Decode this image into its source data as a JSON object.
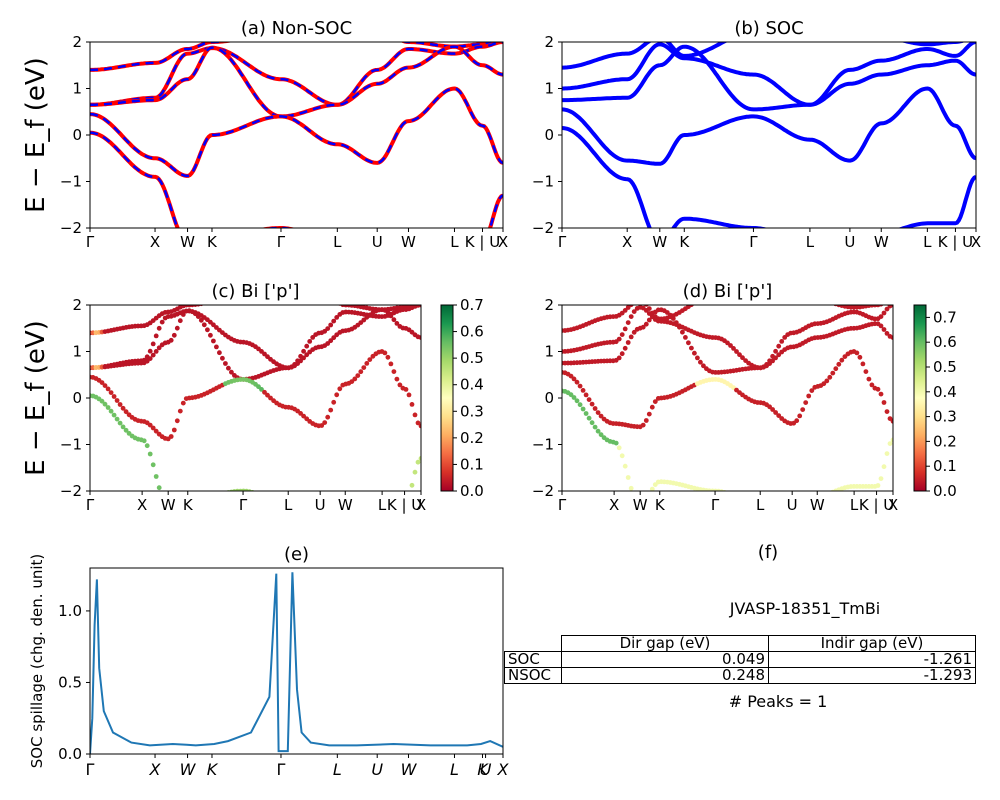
{
  "chart_data": [
    {
      "type": "line",
      "title": "(a) Non-SOC",
      "ylabel": "E − E_f (eV)",
      "ylim": [
        -2,
        2
      ],
      "yticks": [
        "−2",
        "−1",
        "0",
        "1",
        "2"
      ],
      "xticks": [
        "Γ",
        "X",
        "W",
        "K",
        "Γ",
        "L",
        "U",
        "W",
        "L",
        "K | U",
        "X"
      ],
      "kpath_positions": [
        0,
        1.414,
        2.121,
        2.652,
        4.152,
        5.377,
        6.244,
        6.924,
        7.924,
        8.533,
        8.979
      ],
      "series": [
        {
          "color": "#ff0000",
          "style": "solid",
          "bands": [
            [
              1.4,
              1.55,
              1.85,
              2.0,
              2.2,
              2.2,
              2.3,
              2.0,
              1.9,
              1.95,
              2.1
            ],
            [
              0.65,
              0.8,
              1.75,
              1.87,
              1.2,
              0.65,
              1.4,
              1.85,
              1.75,
              1.9,
              2.0
            ],
            [
              0.65,
              0.75,
              1.2,
              1.88,
              0.4,
              0.65,
              1.1,
              1.45,
              1.9,
              1.5,
              1.3
            ],
            [
              0.45,
              -0.5,
              -0.88,
              0.0,
              0.4,
              -0.2,
              -0.6,
              0.3,
              1.0,
              0.2,
              -0.6
            ],
            [
              0.05,
              -0.9,
              -2.3,
              -2.2,
              -2.0,
              -2.3,
              -2.3,
              -2.3,
              -2.1,
              -2.3,
              -1.3
            ]
          ]
        },
        {
          "color": "#0000ff",
          "style": "dashed",
          "bands": "same as solid"
        }
      ]
    },
    {
      "type": "line",
      "title": "(b) SOC",
      "ylim": [
        -2,
        2
      ],
      "yticks": [
        "−2",
        "−1",
        "0",
        "1",
        "2"
      ],
      "xticks": [
        "Γ",
        "X",
        "W",
        "K",
        "Γ",
        "L",
        "U",
        "W",
        "L",
        "K | U",
        "X"
      ],
      "series": [
        {
          "color": "#0000ff",
          "bands": [
            [
              1.45,
              1.75,
              2.1,
              1.7,
              2.2,
              2.2,
              2.3,
              2.1,
              1.95,
              2.0,
              2.1
            ],
            [
              1.0,
              1.2,
              1.95,
              1.65,
              1.3,
              0.65,
              1.4,
              1.6,
              1.85,
              1.7,
              2.0
            ],
            [
              0.75,
              0.8,
              1.5,
              1.9,
              0.55,
              0.65,
              1.1,
              1.3,
              1.5,
              1.6,
              1.3
            ],
            [
              0.55,
              -0.55,
              -0.62,
              0.0,
              0.4,
              -0.1,
              -0.55,
              0.25,
              1.0,
              0.2,
              -0.5
            ],
            [
              0.15,
              -0.95,
              -2.3,
              -1.8,
              -2.0,
              -2.3,
              -2.3,
              -2.1,
              -1.9,
              -1.9,
              -0.9
            ]
          ]
        }
      ]
    },
    {
      "type": "scatter",
      "title": "(c)  Bi ['p']",
      "ylabel": "E − E_f (eV)",
      "ylim": [
        -2,
        2
      ],
      "colormap": "RdYlGn",
      "colorbar_range": [
        0.0,
        0.7
      ],
      "colorbar_ticks": [
        "0.0",
        "0.1",
        "0.2",
        "0.3",
        "0.4",
        "0.5",
        "0.6",
        "0.7"
      ],
      "xticks": [
        "Γ",
        "X",
        "W",
        "K",
        "Γ",
        "L",
        "U",
        "W",
        "L",
        "K | U",
        "X"
      ]
    },
    {
      "type": "scatter",
      "title": "(d) Bi ['p']",
      "ylim": [
        -2,
        2
      ],
      "colormap": "RdYlGn",
      "colorbar_range": [
        0.0,
        0.75
      ],
      "colorbar_ticks": [
        "0.0",
        "0.1",
        "0.2",
        "0.3",
        "0.4",
        "0.5",
        "0.6",
        "0.7"
      ],
      "xticks": [
        "Γ",
        "X",
        "W",
        "K",
        "Γ",
        "L",
        "U",
        "W",
        "L",
        "K | U",
        "X"
      ]
    },
    {
      "type": "line",
      "title": "(e)",
      "ylabel": "SOC spillage (chg. den. unit)",
      "ylim": [
        0,
        1.3
      ],
      "yticks": [
        "0.0",
        "0.5",
        "1.0"
      ],
      "xticks": [
        "Γ",
        "X",
        "W",
        "K",
        "Γ",
        "L",
        "U",
        "W",
        "L",
        "K",
        "U",
        "X"
      ],
      "series": [
        {
          "color": "#1f77b4",
          "x": [
            0,
            0.05,
            0.1,
            0.15,
            0.2,
            0.3,
            0.5,
            0.9,
            1.3,
            1.8,
            2.1,
            2.3,
            2.7,
            3.0,
            3.5,
            3.9,
            4.05,
            4.1,
            4.15,
            4.3,
            4.4,
            4.5,
            4.6,
            4.8,
            5.2,
            5.8,
            6.6,
            7.4,
            8.2,
            8.5,
            8.7,
            8.979
          ],
          "y": [
            0.0,
            0.25,
            0.9,
            1.22,
            0.6,
            0.3,
            0.15,
            0.08,
            0.06,
            0.07,
            0.065,
            0.06,
            0.07,
            0.09,
            0.15,
            0.4,
            1.26,
            0.02,
            0.02,
            0.02,
            1.27,
            0.45,
            0.15,
            0.08,
            0.06,
            0.06,
            0.07,
            0.06,
            0.06,
            0.07,
            0.09,
            0.05
          ]
        }
      ]
    }
  ],
  "panel_f": {
    "title": "(f)",
    "material": "JVASP-18351_TmBi",
    "columns": [
      "Dir gap (eV)",
      "Indir gap (eV)"
    ],
    "rows": [
      {
        "label": "SOC",
        "dir": "0.049",
        "indir": "-1.261"
      },
      {
        "label": "NSOC",
        "dir": "0.248",
        "indir": "-1.293"
      }
    ],
    "peaks": "# Peaks = 1"
  }
}
